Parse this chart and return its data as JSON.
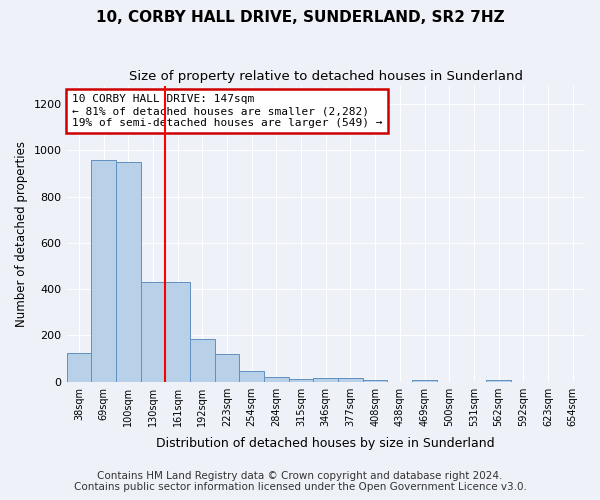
{
  "title": "10, CORBY HALL DRIVE, SUNDERLAND, SR2 7HZ",
  "subtitle": "Size of property relative to detached houses in Sunderland",
  "xlabel": "Distribution of detached houses by size in Sunderland",
  "ylabel": "Number of detached properties",
  "categories": [
    "38sqm",
    "69sqm",
    "100sqm",
    "130sqm",
    "161sqm",
    "192sqm",
    "223sqm",
    "254sqm",
    "284sqm",
    "315sqm",
    "346sqm",
    "377sqm",
    "408sqm",
    "438sqm",
    "469sqm",
    "500sqm",
    "531sqm",
    "562sqm",
    "592sqm",
    "623sqm",
    "654sqm"
  ],
  "values": [
    125,
    960,
    950,
    430,
    430,
    185,
    120,
    45,
    20,
    10,
    15,
    15,
    5,
    0,
    8,
    0,
    0,
    5,
    0,
    0,
    0
  ],
  "bar_color": "#b8d0e8",
  "bar_edge_color": "#6090c0",
  "bar_edge_width": 0.7,
  "annotation_line1": "10 CORBY HALL DRIVE: 147sqm",
  "annotation_line2": "← 81% of detached houses are smaller (2,282)",
  "annotation_line3": "19% of semi-detached houses are larger (549) →",
  "annotation_box_color": "#ffffff",
  "annotation_box_edge_color": "#cc0000",
  "ylim": [
    0,
    1280
  ],
  "yticks": [
    0,
    200,
    400,
    600,
    800,
    1000,
    1200
  ],
  "footer_line1": "Contains HM Land Registry data © Crown copyright and database right 2024.",
  "footer_line2": "Contains public sector information licensed under the Open Government Licence v3.0.",
  "background_color": "#eef2f8",
  "plot_background_color": "#eef2f8",
  "grid_color": "#ffffff",
  "title_fontsize": 11,
  "subtitle_fontsize": 9.5,
  "footer_fontsize": 7.5
}
